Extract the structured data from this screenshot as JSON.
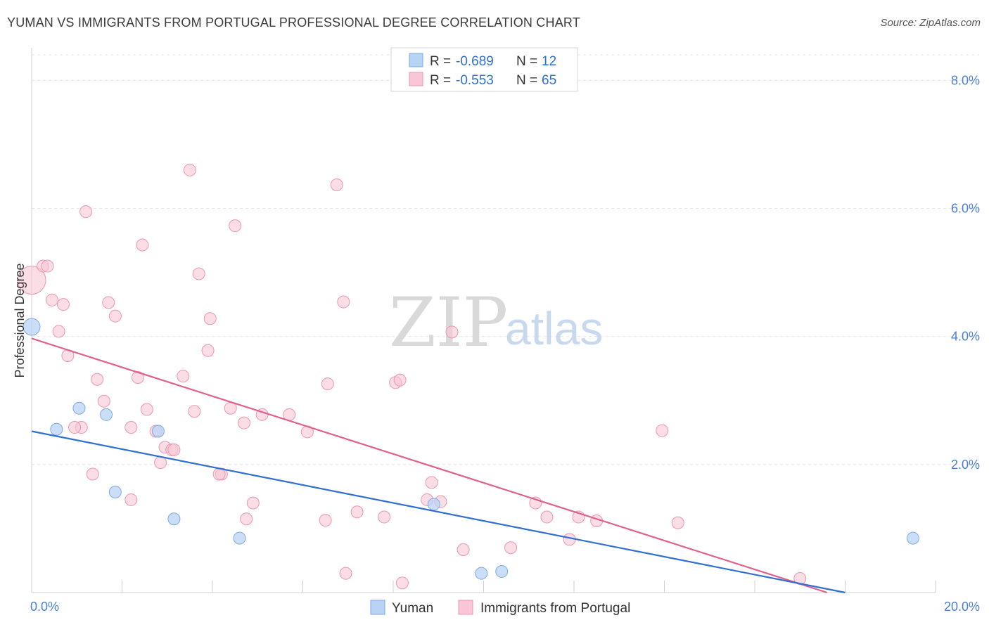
{
  "header": {
    "title": "YUMAN VS IMMIGRANTS FROM PORTUGAL PROFESSIONAL DEGREE CORRELATION CHART",
    "source": "Source: ZipAtlas.com"
  },
  "colors": {
    "yuman_fill": "#b9d3f5",
    "yuman_stroke": "#7ea9e6",
    "yuman_line": "#2f6fd1",
    "portugal_fill": "#f8c6d6",
    "portugal_stroke": "#ec95b2",
    "portugal_line": "#e0608e",
    "axis_text": "#4a7fd4"
  },
  "legend_top": {
    "rows": [
      {
        "r_label": "R = ",
        "r_value": "-0.689",
        "n_label": "N = ",
        "n_value": "12"
      },
      {
        "r_label": "R = ",
        "r_value": "-0.553",
        "n_label": "N = ",
        "n_value": "65"
      }
    ]
  },
  "legend_bottom": {
    "items": [
      "Yuman",
      "Immigrants from Portugal"
    ]
  },
  "watermark": {
    "zip": "ZIP",
    "atlas": "atlas"
  },
  "chart_data": {
    "type": "scatter",
    "xlabel": "",
    "ylabel": "Professional Degree",
    "xlim": [
      0,
      20
    ],
    "ylim": [
      0,
      8.4
    ],
    "x_tick_labels": [
      "0.0%",
      "20.0%"
    ],
    "y_ticks": [
      2,
      4,
      6,
      8
    ],
    "y_tick_labels": [
      "2.0%",
      "4.0%",
      "6.0%",
      "8.0%"
    ],
    "grid": true,
    "legend_position": "bottom-center",
    "series": [
      {
        "name": "Yuman",
        "points": [
          [
            0.0,
            4.15
          ],
          [
            0.55,
            2.55
          ],
          [
            1.05,
            2.88
          ],
          [
            1.65,
            2.78
          ],
          [
            1.85,
            1.57
          ],
          [
            2.8,
            2.52
          ],
          [
            3.15,
            1.15
          ],
          [
            4.6,
            0.85
          ],
          [
            8.9,
            1.38
          ],
          [
            9.95,
            0.3
          ],
          [
            10.4,
            0.33
          ],
          [
            19.5,
            0.85
          ]
        ],
        "trend": [
          [
            0.0,
            2.52
          ],
          [
            18.0,
            0.0
          ]
        ]
      },
      {
        "name": "Immigrants from Portugal",
        "points": [
          [
            0.0,
            4.88
          ],
          [
            0.25,
            5.1
          ],
          [
            0.35,
            5.1
          ],
          [
            0.45,
            4.57
          ],
          [
            0.7,
            4.5
          ],
          [
            0.6,
            4.08
          ],
          [
            0.8,
            3.7
          ],
          [
            1.2,
            5.95
          ],
          [
            1.45,
            3.33
          ],
          [
            1.6,
            2.99
          ],
          [
            1.7,
            4.53
          ],
          [
            1.85,
            4.32
          ],
          [
            2.2,
            2.58
          ],
          [
            2.35,
            3.36
          ],
          [
            2.45,
            5.43
          ],
          [
            2.55,
            2.86
          ],
          [
            2.75,
            2.52
          ],
          [
            2.85,
            2.03
          ],
          [
            2.95,
            2.27
          ],
          [
            3.1,
            2.23
          ],
          [
            3.35,
            3.38
          ],
          [
            3.5,
            6.6
          ],
          [
            3.6,
            2.83
          ],
          [
            3.7,
            4.98
          ],
          [
            3.9,
            3.78
          ],
          [
            3.95,
            4.28
          ],
          [
            4.2,
            1.85
          ],
          [
            4.4,
            2.88
          ],
          [
            4.5,
            5.73
          ],
          [
            4.7,
            2.65
          ],
          [
            4.75,
            1.15
          ],
          [
            4.9,
            1.4
          ],
          [
            5.1,
            2.78
          ],
          [
            5.7,
            2.78
          ],
          [
            6.1,
            2.51
          ],
          [
            6.5,
            1.13
          ],
          [
            6.55,
            3.26
          ],
          [
            6.75,
            6.37
          ],
          [
            6.9,
            4.54
          ],
          [
            6.95,
            0.3
          ],
          [
            7.2,
            1.26
          ],
          [
            7.8,
            1.18
          ],
          [
            8.05,
            3.28
          ],
          [
            8.15,
            3.32
          ],
          [
            8.2,
            0.15
          ],
          [
            8.75,
            1.45
          ],
          [
            8.85,
            1.72
          ],
          [
            9.05,
            1.42
          ],
          [
            9.3,
            4.07
          ],
          [
            9.55,
            0.67
          ],
          [
            10.6,
            0.7
          ],
          [
            11.15,
            1.4
          ],
          [
            11.4,
            1.18
          ],
          [
            11.9,
            0.83
          ],
          [
            12.1,
            1.18
          ],
          [
            12.5,
            1.12
          ],
          [
            13.95,
            2.53
          ],
          [
            14.3,
            1.09
          ],
          [
            17.0,
            0.22
          ],
          [
            2.2,
            1.45
          ],
          [
            1.35,
            1.85
          ],
          [
            1.1,
            2.58
          ],
          [
            0.95,
            2.58
          ],
          [
            4.15,
            1.85
          ],
          [
            3.15,
            2.23
          ]
        ],
        "trend": [
          [
            0.0,
            3.97
          ],
          [
            17.6,
            0.0
          ]
        ]
      }
    ]
  }
}
